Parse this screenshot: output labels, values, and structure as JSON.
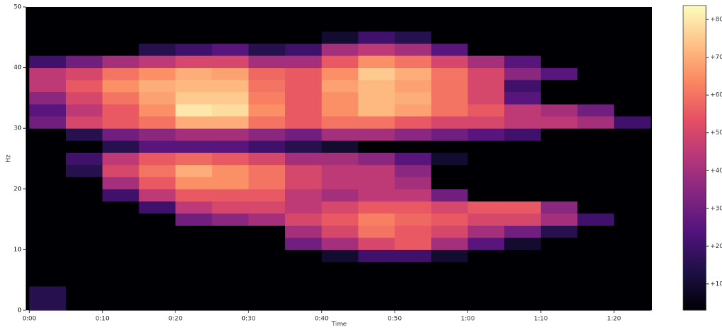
{
  "chart_data": {
    "type": "heatmap",
    "x_label": "Time",
    "y_label": "Hz",
    "x_edges": [
      0,
      5,
      10,
      15,
      20,
      25,
      30,
      35,
      40,
      45,
      50,
      55,
      60,
      65,
      70,
      75,
      80,
      85
    ],
    "y_edges": [
      0,
      2,
      4,
      6,
      8,
      10,
      12,
      14,
      16,
      18,
      20,
      22,
      24,
      26,
      28,
      30,
      32,
      34,
      36,
      38,
      40,
      42,
      44,
      46,
      48,
      50
    ],
    "z": [
      [
        15,
        0,
        0,
        0,
        0,
        0,
        0,
        0,
        0,
        0,
        0,
        0,
        0,
        0,
        0,
        0,
        0
      ],
      [
        15,
        0,
        0,
        0,
        0,
        0,
        0,
        0,
        0,
        0,
        0,
        0,
        0,
        0,
        0,
        0,
        0
      ],
      [
        0,
        0,
        0,
        0,
        0,
        0,
        0,
        0,
        0,
        0,
        0,
        0,
        0,
        0,
        0,
        0,
        0
      ],
      [
        0,
        0,
        0,
        0,
        0,
        0,
        0,
        0,
        0,
        0,
        0,
        0,
        0,
        0,
        0,
        0,
        0
      ],
      [
        0,
        0,
        0,
        0,
        0,
        0,
        0,
        0,
        10,
        20,
        20,
        10,
        0,
        0,
        0,
        0,
        0
      ],
      [
        0,
        0,
        0,
        0,
        0,
        0,
        0,
        30,
        40,
        50,
        55,
        40,
        25,
        10,
        0,
        0,
        0
      ],
      [
        0,
        0,
        0,
        0,
        0,
        0,
        0,
        40,
        50,
        60,
        55,
        50,
        40,
        30,
        15,
        0,
        0
      ],
      [
        0,
        0,
        0,
        0,
        30,
        35,
        40,
        50,
        55,
        62,
        58,
        55,
        50,
        50,
        40,
        20,
        0
      ],
      [
        0,
        0,
        0,
        20,
        45,
        50,
        50,
        45,
        50,
        55,
        55,
        50,
        55,
        55,
        35,
        0,
        0
      ],
      [
        0,
        0,
        20,
        45,
        55,
        55,
        55,
        45,
        40,
        45,
        45,
        30,
        0,
        0,
        0,
        0,
        0
      ],
      [
        0,
        0,
        40,
        55,
        65,
        65,
        60,
        50,
        45,
        45,
        40,
        0,
        0,
        0,
        0,
        0,
        0
      ],
      [
        0,
        15,
        50,
        60,
        70,
        65,
        60,
        50,
        45,
        45,
        35,
        0,
        0,
        0,
        0,
        0,
        0
      ],
      [
        0,
        20,
        45,
        55,
        58,
        55,
        50,
        40,
        40,
        35,
        25,
        10,
        0,
        0,
        0,
        0,
        0
      ],
      [
        0,
        0,
        15,
        25,
        25,
        25,
        20,
        15,
        10,
        0,
        0,
        0,
        0,
        0,
        0,
        0,
        0
      ],
      [
        0,
        15,
        30,
        35,
        40,
        40,
        35,
        30,
        40,
        40,
        35,
        30,
        25,
        20,
        0,
        0,
        0
      ],
      [
        30,
        50,
        55,
        60,
        70,
        70,
        60,
        55,
        60,
        60,
        55,
        50,
        50,
        45,
        45,
        40,
        20
      ],
      [
        25,
        45,
        55,
        65,
        80,
        78,
        65,
        55,
        65,
        72,
        68,
        60,
        55,
        45,
        40,
        30,
        0
      ],
      [
        35,
        50,
        60,
        68,
        75,
        75,
        62,
        55,
        65,
        72,
        70,
        60,
        50,
        25,
        0,
        0,
        0
      ],
      [
        45,
        55,
        65,
        70,
        72,
        72,
        60,
        55,
        68,
        72,
        68,
        60,
        50,
        20,
        0,
        0,
        0
      ],
      [
        45,
        50,
        60,
        65,
        70,
        68,
        58,
        55,
        65,
        75,
        70,
        60,
        50,
        35,
        25,
        0,
        0
      ],
      [
        20,
        30,
        40,
        45,
        50,
        50,
        40,
        40,
        55,
        65,
        60,
        50,
        40,
        25,
        0,
        0,
        0
      ],
      [
        0,
        0,
        0,
        15,
        20,
        25,
        15,
        20,
        40,
        45,
        40,
        25,
        0,
        0,
        0,
        0,
        0
      ],
      [
        0,
        0,
        0,
        0,
        0,
        0,
        0,
        0,
        10,
        20,
        15,
        0,
        0,
        0,
        0,
        0,
        0
      ],
      [
        0,
        0,
        0,
        0,
        0,
        0,
        0,
        0,
        0,
        0,
        0,
        0,
        0,
        0,
        0,
        0,
        0
      ],
      [
        0,
        0,
        0,
        0,
        0,
        0,
        0,
        0,
        0,
        0,
        0,
        0,
        0,
        0,
        0,
        0,
        0
      ]
    ],
    "colormap": "magma",
    "xlim": [
      -0.5,
      85.2
    ],
    "ylim": [
      0,
      50
    ],
    "xticks": [
      {
        "value": 0,
        "label": "0:00"
      },
      {
        "value": 10,
        "label": "0:10"
      },
      {
        "value": 20,
        "label": "0:20"
      },
      {
        "value": 30,
        "label": "0:30"
      },
      {
        "value": 40,
        "label": "0:40"
      },
      {
        "value": 50,
        "label": "0:50"
      },
      {
        "value": 60,
        "label": "1:00"
      },
      {
        "value": 70,
        "label": "1:10"
      },
      {
        "value": 80,
        "label": "1:20"
      }
    ],
    "yticks": [
      0,
      10,
      20,
      30,
      40,
      50
    ],
    "clim": [
      3,
      83.7
    ],
    "cticks": [
      {
        "value": 10,
        "label": "+10"
      },
      {
        "value": 20,
        "label": "+20"
      },
      {
        "value": 30,
        "label": "+30"
      },
      {
        "value": 40,
        "label": "+40"
      },
      {
        "value": 50,
        "label": "+50"
      },
      {
        "value": 60,
        "label": "+60"
      },
      {
        "value": 70,
        "label": "+70"
      },
      {
        "value": 80,
        "label": "+80"
      }
    ]
  }
}
